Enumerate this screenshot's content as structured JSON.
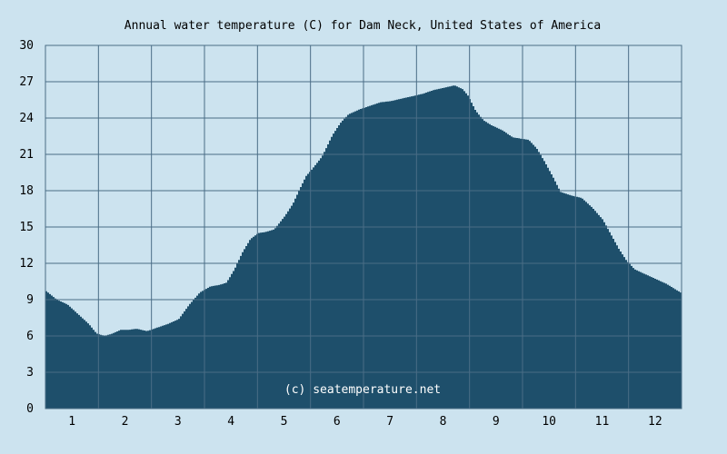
{
  "chart_data": {
    "type": "area",
    "title": "Annual water temperature (C) for Dam Neck, United States of America",
    "xlabel": "",
    "ylabel": "",
    "x_ticks": [
      "1",
      "2",
      "3",
      "4",
      "5",
      "6",
      "7",
      "8",
      "9",
      "10",
      "11",
      "12"
    ],
    "y_ticks": [
      "0",
      "3",
      "6",
      "9",
      "12",
      "15",
      "18",
      "21",
      "24",
      "27",
      "30"
    ],
    "ylim": [
      0,
      30
    ],
    "xlim": [
      0.5,
      12.5
    ],
    "grid": true,
    "fill_color": "#1e4f6b",
    "grid_color": "#4a6d86",
    "background_color": "#cce3ef",
    "x": [
      0.5,
      0.7,
      0.9,
      1.1,
      1.3,
      1.45,
      1.6,
      1.75,
      1.9,
      2.05,
      2.2,
      2.4,
      2.6,
      2.8,
      3.0,
      3.2,
      3.4,
      3.6,
      3.75,
      3.9,
      4.05,
      4.2,
      4.35,
      4.5,
      4.65,
      4.8,
      5.0,
      5.15,
      5.3,
      5.4,
      5.5,
      5.7,
      5.9,
      6.05,
      6.2,
      6.4,
      6.6,
      6.8,
      7.0,
      7.2,
      7.4,
      7.6,
      7.8,
      8.0,
      8.2,
      8.35,
      8.45,
      8.6,
      8.75,
      8.9,
      9.1,
      9.3,
      9.45,
      9.6,
      9.75,
      9.9,
      10.05,
      10.2,
      10.4,
      10.6,
      10.8,
      11.0,
      11.15,
      11.3,
      11.45,
      11.6,
      11.8,
      12.0,
      12.2,
      12.35,
      12.5
    ],
    "values": [
      9.7,
      9.0,
      8.6,
      7.8,
      7.0,
      6.2,
      6.0,
      6.2,
      6.5,
      6.5,
      6.6,
      6.4,
      6.7,
      7.0,
      7.4,
      8.6,
      9.6,
      10.1,
      10.2,
      10.4,
      11.5,
      12.9,
      14.0,
      14.5,
      14.6,
      14.8,
      15.9,
      16.9,
      18.3,
      19.2,
      19.7,
      20.8,
      22.6,
      23.6,
      24.3,
      24.7,
      25.0,
      25.3,
      25.4,
      25.6,
      25.8,
      26.0,
      26.3,
      26.5,
      26.7,
      26.4,
      25.9,
      24.6,
      23.8,
      23.4,
      23.0,
      22.4,
      22.3,
      22.2,
      21.5,
      20.4,
      19.2,
      17.9,
      17.6,
      17.4,
      16.6,
      15.6,
      14.4,
      13.2,
      12.2,
      11.5,
      11.1,
      10.7,
      10.3,
      9.9,
      9.5
    ],
    "watermark": "(c) seatemperature.net"
  }
}
